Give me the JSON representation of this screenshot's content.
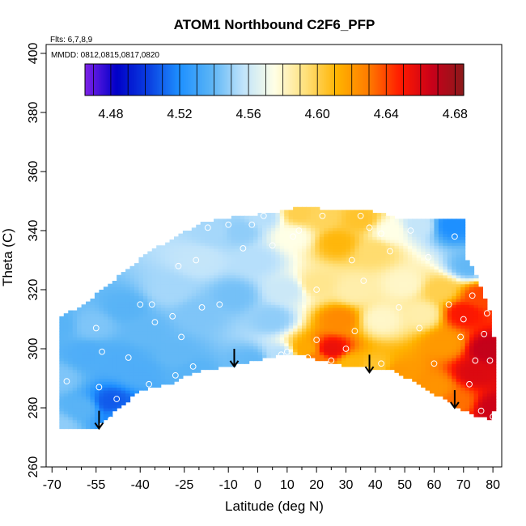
{
  "chart_data": {
    "type": "heatmap",
    "title": "ATOM1 Northbound C2F6_PFP",
    "flights_note": "Flts: 6,7,8,9",
    "dates_note": "MMDD: 0812,0815,0817,0820",
    "xlabel": "Latitude (deg N)",
    "ylabel": "Theta (C)",
    "xlim": [
      -72,
      83
    ],
    "ylim": [
      260,
      403
    ],
    "x_ticks": [
      -70,
      -55,
      -40,
      -25,
      -10,
      0,
      10,
      20,
      30,
      40,
      50,
      60,
      70,
      80
    ],
    "x_minor_ticks": [
      -65,
      -60,
      -50,
      -45,
      -35,
      -30,
      -20,
      -15,
      -5,
      5,
      15,
      25,
      35,
      45,
      55,
      65,
      75
    ],
    "y_ticks": [
      260,
      280,
      300,
      320,
      340,
      360,
      380,
      400
    ],
    "colorbar": {
      "min": 4.465,
      "max": 4.685,
      "ticks": [
        4.48,
        4.52,
        4.56,
        4.6,
        4.64,
        4.68
      ],
      "stops": [
        "#7f22e8",
        "#0000c8",
        "#0a3ee0",
        "#1e90ff",
        "#5ab4f6",
        "#bfe3fb",
        "#ffffe6",
        "#ffe07a",
        "#ffb300",
        "#ff7a00",
        "#ff1a00",
        "#c8001a",
        "#8b1a1a"
      ]
    },
    "field_nodes": [
      {
        "x": -68,
        "y": 274,
        "v": 4.548
      },
      {
        "x": -68,
        "y": 290,
        "v": 4.545
      },
      {
        "x": -68,
        "y": 308,
        "v": 4.538
      },
      {
        "x": -60,
        "y": 280,
        "v": 4.538
      },
      {
        "x": -58,
        "y": 298,
        "v": 4.535
      },
      {
        "x": -56,
        "y": 308,
        "v": 4.545
      },
      {
        "x": -50,
        "y": 282,
        "v": 4.508
      },
      {
        "x": -47,
        "y": 277,
        "v": 4.518
      },
      {
        "x": -47,
        "y": 296,
        "v": 4.535
      },
      {
        "x": -45,
        "y": 314,
        "v": 4.538
      },
      {
        "x": -40,
        "y": 292,
        "v": 4.535
      },
      {
        "x": -38,
        "y": 306,
        "v": 4.54
      },
      {
        "x": -30,
        "y": 320,
        "v": 4.552
      },
      {
        "x": -28,
        "y": 298,
        "v": 4.54
      },
      {
        "x": -22,
        "y": 292,
        "v": 4.538
      },
      {
        "x": -20,
        "y": 312,
        "v": 4.545
      },
      {
        "x": -20,
        "y": 330,
        "v": 4.558
      },
      {
        "x": -15,
        "y": 340,
        "v": 4.552
      },
      {
        "x": -8,
        "y": 318,
        "v": 4.543
      },
      {
        "x": -6,
        "y": 340,
        "v": 4.548
      },
      {
        "x": -2,
        "y": 296,
        "v": 4.54
      },
      {
        "x": 0,
        "y": 330,
        "v": 4.555
      },
      {
        "x": 2,
        "y": 345,
        "v": 4.555
      },
      {
        "x": 5,
        "y": 310,
        "v": 4.548
      },
      {
        "x": 8,
        "y": 298,
        "v": 4.555
      },
      {
        "x": 10,
        "y": 320,
        "v": 4.56
      },
      {
        "x": 12,
        "y": 338,
        "v": 4.575
      },
      {
        "x": 14,
        "y": 346,
        "v": 4.6
      },
      {
        "x": 16,
        "y": 300,
        "v": 4.615
      },
      {
        "x": 20,
        "y": 296,
        "v": 4.63
      },
      {
        "x": 20,
        "y": 322,
        "v": 4.59
      },
      {
        "x": 22,
        "y": 345,
        "v": 4.598
      },
      {
        "x": 25,
        "y": 300,
        "v": 4.655
      },
      {
        "x": 27,
        "y": 336,
        "v": 4.61
      },
      {
        "x": 28,
        "y": 310,
        "v": 4.625
      },
      {
        "x": 32,
        "y": 295,
        "v": 4.61
      },
      {
        "x": 33,
        "y": 320,
        "v": 4.585
      },
      {
        "x": 35,
        "y": 344,
        "v": 4.605
      },
      {
        "x": 40,
        "y": 294,
        "v": 4.605
      },
      {
        "x": 40,
        "y": 333,
        "v": 4.595
      },
      {
        "x": 42,
        "y": 310,
        "v": 4.58
      },
      {
        "x": 45,
        "y": 340,
        "v": 4.575
      },
      {
        "x": 48,
        "y": 292,
        "v": 4.62
      },
      {
        "x": 50,
        "y": 322,
        "v": 4.58
      },
      {
        "x": 55,
        "y": 342,
        "v": 4.558
      },
      {
        "x": 56,
        "y": 312,
        "v": 4.585
      },
      {
        "x": 60,
        "y": 287,
        "v": 4.622
      },
      {
        "x": 62,
        "y": 320,
        "v": 4.6
      },
      {
        "x": 64,
        "y": 302,
        "v": 4.62
      },
      {
        "x": 66,
        "y": 342,
        "v": 4.52
      },
      {
        "x": 68,
        "y": 282,
        "v": 4.632
      },
      {
        "x": 70,
        "y": 312,
        "v": 4.65
      },
      {
        "x": 72,
        "y": 328,
        "v": 4.54
      },
      {
        "x": 74,
        "y": 292,
        "v": 4.66
      },
      {
        "x": 76,
        "y": 318,
        "v": 4.64
      },
      {
        "x": 78,
        "y": 300,
        "v": 4.668
      },
      {
        "x": 80,
        "y": 280,
        "v": 4.665
      }
    ],
    "domain_polygon": [
      [
        -68,
        273
      ],
      [
        -55,
        273
      ],
      [
        -52,
        276
      ],
      [
        -40,
        286
      ],
      [
        -30,
        288
      ],
      [
        -22,
        292
      ],
      [
        -10,
        294
      ],
      [
        8,
        298
      ],
      [
        14,
        298
      ],
      [
        22,
        296
      ],
      [
        30,
        294
      ],
      [
        45,
        293
      ],
      [
        55,
        288
      ],
      [
        68,
        280
      ],
      [
        75,
        277
      ],
      [
        80,
        276
      ],
      [
        81,
        288
      ],
      [
        80,
        310
      ],
      [
        76,
        320
      ],
      [
        73,
        328
      ],
      [
        71,
        330
      ],
      [
        70,
        342
      ],
      [
        70,
        344
      ],
      [
        62,
        344
      ],
      [
        48,
        344
      ],
      [
        38,
        347
      ],
      [
        28,
        347
      ],
      [
        14,
        348
      ],
      [
        5,
        346
      ],
      [
        -5,
        345
      ],
      [
        -18,
        343
      ],
      [
        -28,
        338
      ],
      [
        -38,
        332
      ],
      [
        -48,
        324
      ],
      [
        -58,
        316
      ],
      [
        -68,
        310
      ]
    ],
    "sample_points": [
      [
        -69,
        273
      ],
      [
        -69,
        288
      ],
      [
        -69,
        297
      ],
      [
        -65,
        289
      ],
      [
        -55,
        307
      ],
      [
        -54,
        287
      ],
      [
        -53,
        299
      ],
      [
        -50,
        276
      ],
      [
        -48,
        283
      ],
      [
        -46,
        276
      ],
      [
        -44,
        297
      ],
      [
        -40,
        315
      ],
      [
        -37,
        288
      ],
      [
        -36,
        315
      ],
      [
        -35,
        309
      ],
      [
        -29,
        311
      ],
      [
        -28,
        291
      ],
      [
        -27,
        328
      ],
      [
        -26,
        304
      ],
      [
        -22,
        294
      ],
      [
        -21,
        330
      ],
      [
        -19,
        314
      ],
      [
        -17,
        341
      ],
      [
        -13,
        315
      ],
      [
        -10,
        342
      ],
      [
        -5,
        334
      ],
      [
        -2,
        342
      ],
      [
        2,
        345
      ],
      [
        5,
        335
      ],
      [
        8,
        298
      ],
      [
        10,
        299
      ],
      [
        12,
        338
      ],
      [
        14,
        340
      ],
      [
        17,
        297
      ],
      [
        20,
        303
      ],
      [
        20,
        320
      ],
      [
        22,
        345
      ],
      [
        25,
        296
      ],
      [
        30,
        300
      ],
      [
        32,
        330
      ],
      [
        33,
        306
      ],
      [
        35,
        345
      ],
      [
        36,
        323
      ],
      [
        38,
        341
      ],
      [
        42,
        295
      ],
      [
        42,
        339
      ],
      [
        45,
        333
      ],
      [
        48,
        314
      ],
      [
        52,
        340
      ],
      [
        55,
        307
      ],
      [
        58,
        331
      ],
      [
        60,
        295
      ],
      [
        65,
        315
      ],
      [
        67,
        338
      ],
      [
        69,
        304
      ],
      [
        70,
        310
      ],
      [
        72,
        288
      ],
      [
        73,
        318
      ],
      [
        74,
        296
      ],
      [
        76,
        279
      ],
      [
        77,
        305
      ],
      [
        78,
        312
      ],
      [
        79,
        296
      ],
      [
        80,
        277
      ]
    ],
    "arrows": [
      {
        "x": -54,
        "y_top": 279,
        "y_bottom": 273
      },
      {
        "x": -8,
        "y_top": 300,
        "y_bottom": 294
      },
      {
        "x": 38,
        "y_top": 298,
        "y_bottom": 292
      },
      {
        "x": 67,
        "y_top": 286,
        "y_bottom": 280
      }
    ]
  }
}
